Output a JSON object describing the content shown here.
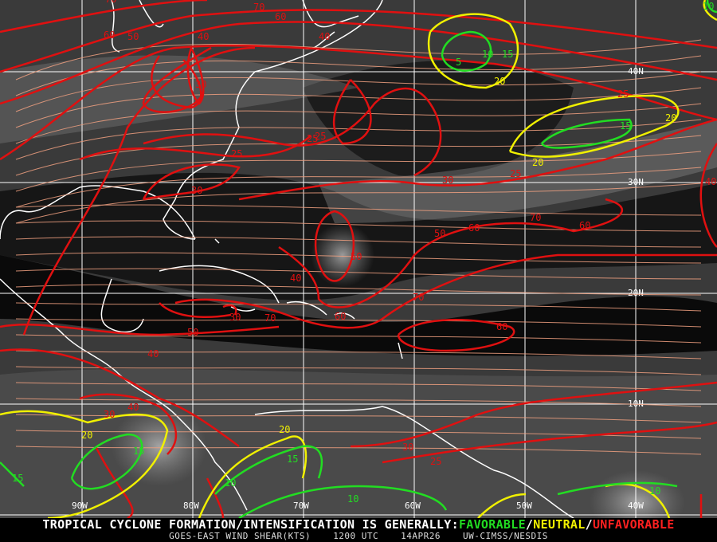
{
  "caption": {
    "headline_prefix": "TROPICAL CYCLONE FORMATION/INTENSIFICATION IS GENERALLY:",
    "favorable": "FAVORABLE",
    "sep1": "/",
    "neutral": "NEUTRAL",
    "sep2": "/",
    "unfavorable": "UNFAVORABLE",
    "product": "GOES-EAST WIND SHEAR(KTS)",
    "time": "1200 UTC",
    "date": "14APR26",
    "source": "UW-CIMSS/NESDIS"
  },
  "colors": {
    "favorable": "#22dd22",
    "neutral": "#f0f000",
    "unfavorable": "#e01010",
    "streamlines": "#f0a080",
    "coastlines": "#ffffff",
    "grid": "#ffffff"
  },
  "grid": {
    "longitudes": [
      "90W",
      "80W",
      "70W",
      "60W",
      "50W",
      "40W"
    ],
    "latitudes": [
      "40N",
      "30N",
      "20N",
      "10N"
    ]
  },
  "contour_labels": [
    {
      "v": "70",
      "c": "unfavorable"
    },
    {
      "v": "60",
      "c": "unfavorable"
    },
    {
      "v": "50",
      "c": "unfavorable"
    },
    {
      "v": "40",
      "c": "unfavorable"
    },
    {
      "v": "70",
      "c": "unfavorable"
    },
    {
      "v": "60",
      "c": "unfavorable"
    },
    {
      "v": "40",
      "c": "unfavorable"
    },
    {
      "v": "30",
      "c": "unfavorable"
    },
    {
      "v": "25",
      "c": "unfavorable"
    },
    {
      "v": "25",
      "c": "unfavorable"
    },
    {
      "v": "30",
      "c": "unfavorable"
    },
    {
      "v": "25",
      "c": "unfavorable"
    },
    {
      "v": "5",
      "c": "favorable"
    },
    {
      "v": "10",
      "c": "favorable"
    },
    {
      "v": "15",
      "c": "favorable"
    },
    {
      "v": "20",
      "c": "neutral"
    },
    {
      "v": "25",
      "c": "unfavorable"
    },
    {
      "v": "15",
      "c": "favorable"
    },
    {
      "v": "20",
      "c": "neutral"
    },
    {
      "v": "20",
      "c": "neutral"
    },
    {
      "v": "25",
      "c": "unfavorable"
    },
    {
      "v": "30",
      "c": "unfavorable"
    },
    {
      "v": "40",
      "c": "unfavorable"
    },
    {
      "v": "50",
      "c": "unfavorable"
    },
    {
      "v": "60",
      "c": "unfavorable"
    },
    {
      "v": "70",
      "c": "unfavorable"
    },
    {
      "v": "60",
      "c": "unfavorable"
    },
    {
      "v": "50",
      "c": "unfavorable"
    },
    {
      "v": "40",
      "c": "unfavorable"
    },
    {
      "v": "30",
      "c": "unfavorable"
    },
    {
      "v": "70",
      "c": "unfavorable"
    },
    {
      "v": "60",
      "c": "unfavorable"
    },
    {
      "v": "70",
      "c": "unfavorable"
    },
    {
      "v": "60",
      "c": "unfavorable"
    },
    {
      "v": "50",
      "c": "unfavorable"
    },
    {
      "v": "40",
      "c": "unfavorable"
    },
    {
      "v": "30",
      "c": "unfavorable"
    },
    {
      "v": "20",
      "c": "neutral"
    },
    {
      "v": "15",
      "c": "favorable"
    },
    {
      "v": "15",
      "c": "favorable"
    },
    {
      "v": "20",
      "c": "neutral"
    },
    {
      "v": "15",
      "c": "favorable"
    },
    {
      "v": "10",
      "c": "favorable"
    },
    {
      "v": "10",
      "c": "favorable"
    },
    {
      "v": "30",
      "c": "unfavorable"
    },
    {
      "v": "25",
      "c": "unfavorable"
    },
    {
      "v": "10",
      "c": "favorable"
    },
    {
      "v": "40",
      "c": "unfavorable"
    },
    {
      "v": "10",
      "c": "favorable"
    }
  ]
}
